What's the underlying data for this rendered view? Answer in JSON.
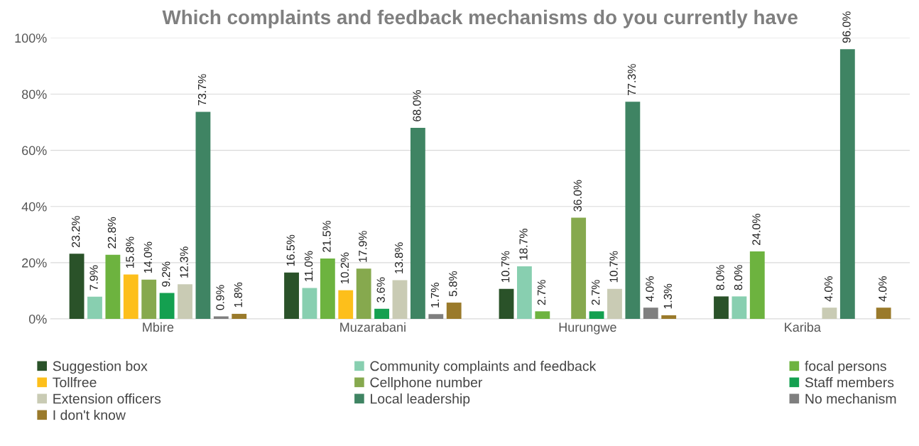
{
  "chart_data": {
    "type": "bar",
    "title": "Which complaints and feedback mechanisms do you currently have",
    "categories": [
      "Mbire",
      "Muzarabani",
      "Hurungwe",
      "Kariba"
    ],
    "series": [
      {
        "name": "Suggestion box",
        "color": "#2a5229",
        "values": [
          23.2,
          16.5,
          10.7,
          8.0
        ],
        "value_labels": [
          "23.2%",
          "16.5%",
          "10.7%",
          "8.0%"
        ]
      },
      {
        "name": "Community complaints and feedback",
        "color": "#88cfb0",
        "values": [
          7.9,
          11.0,
          18.7,
          8.0
        ],
        "value_labels": [
          "7.9%",
          "11.0%",
          "18.7%",
          "8.0%"
        ]
      },
      {
        "name": "focal persons",
        "color": "#6db33f",
        "values": [
          22.8,
          21.5,
          2.7,
          24.0
        ],
        "value_labels": [
          "22.8%",
          "21.5%",
          "2.7%",
          "24.0%"
        ]
      },
      {
        "name": "Tollfree",
        "color": "#fdbf1b",
        "values": [
          15.8,
          10.2,
          null,
          null
        ],
        "value_labels": [
          "15.8%",
          "10.2%",
          null,
          null
        ]
      },
      {
        "name": "Cellphone number",
        "color": "#86a94e",
        "values": [
          14.0,
          17.9,
          36.0,
          null
        ],
        "value_labels": [
          "14.0%",
          "17.9%",
          "36.0%",
          null
        ]
      },
      {
        "name": "Staff members",
        "color": "#14a050",
        "values": [
          9.2,
          3.6,
          2.7,
          null
        ],
        "value_labels": [
          "9.2%",
          "3.6%",
          "2.7%",
          null
        ]
      },
      {
        "name": "Extension officers",
        "color": "#c9cbb4",
        "values": [
          12.3,
          13.8,
          10.7,
          4.0
        ],
        "value_labels": [
          "12.3%",
          "13.8%",
          "10.7%",
          "4.0%"
        ]
      },
      {
        "name": "Local leadership",
        "color": "#3f8463",
        "values": [
          73.7,
          68.0,
          77.3,
          96.0
        ],
        "value_labels": [
          "73.7%",
          "68.0%",
          "77.3%",
          "96.0%"
        ]
      },
      {
        "name": "No mechanism",
        "color": "#7f7f7f",
        "values": [
          0.9,
          1.7,
          4.0,
          null
        ],
        "value_labels": [
          "0.9%",
          "1.7%",
          "4.0%",
          null
        ]
      },
      {
        "name": "I don't know",
        "color": "#9a7a2b",
        "values": [
          1.8,
          5.8,
          1.3,
          4.0
        ],
        "value_labels": [
          "1.8%",
          "5.8%",
          "1.3%",
          "4.0%"
        ]
      }
    ],
    "ylim": [
      0,
      100
    ],
    "yticks": [
      {
        "value": 0,
        "label": "0%"
      },
      {
        "value": 20,
        "label": "20%"
      },
      {
        "value": 40,
        "label": "40%"
      },
      {
        "value": 60,
        "label": "60%"
      },
      {
        "value": 80,
        "label": "80%"
      },
      {
        "value": 100,
        "label": "100%"
      }
    ],
    "grid": "y",
    "legend": "bottom"
  }
}
